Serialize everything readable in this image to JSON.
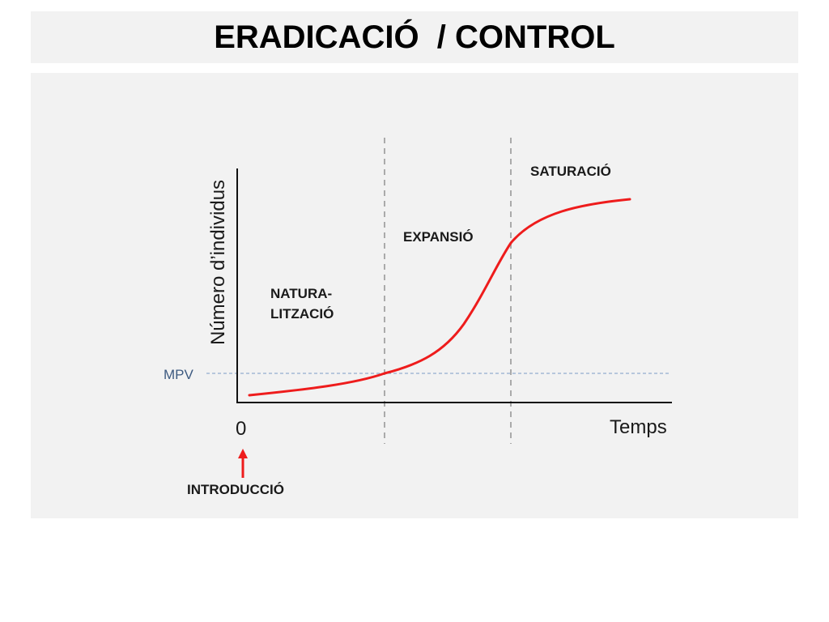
{
  "title": "ERADICACIÓ  / CONTROL",
  "diagram": {
    "y_axis_label": "Número d’individus",
    "x_axis_label": "Temps",
    "origin_label": "0",
    "threshold_label": "MPV",
    "phases": [
      {
        "line1": "NATURA-",
        "line2": "LITZACIÓ"
      },
      {
        "line1": "EXPANSIÓ"
      },
      {
        "line1": "SATURACIÓ"
      }
    ],
    "arrow_label": "INTRODUCCIÓ"
  },
  "colors": {
    "curve": "#ee1c1c",
    "arrow": "#ee1c1c",
    "threshold_line": "#7a9cc6",
    "threshold_text": "#3d5a80",
    "phase_divider": "#aaaaaa",
    "panel_background": "#f2f2f2"
  }
}
